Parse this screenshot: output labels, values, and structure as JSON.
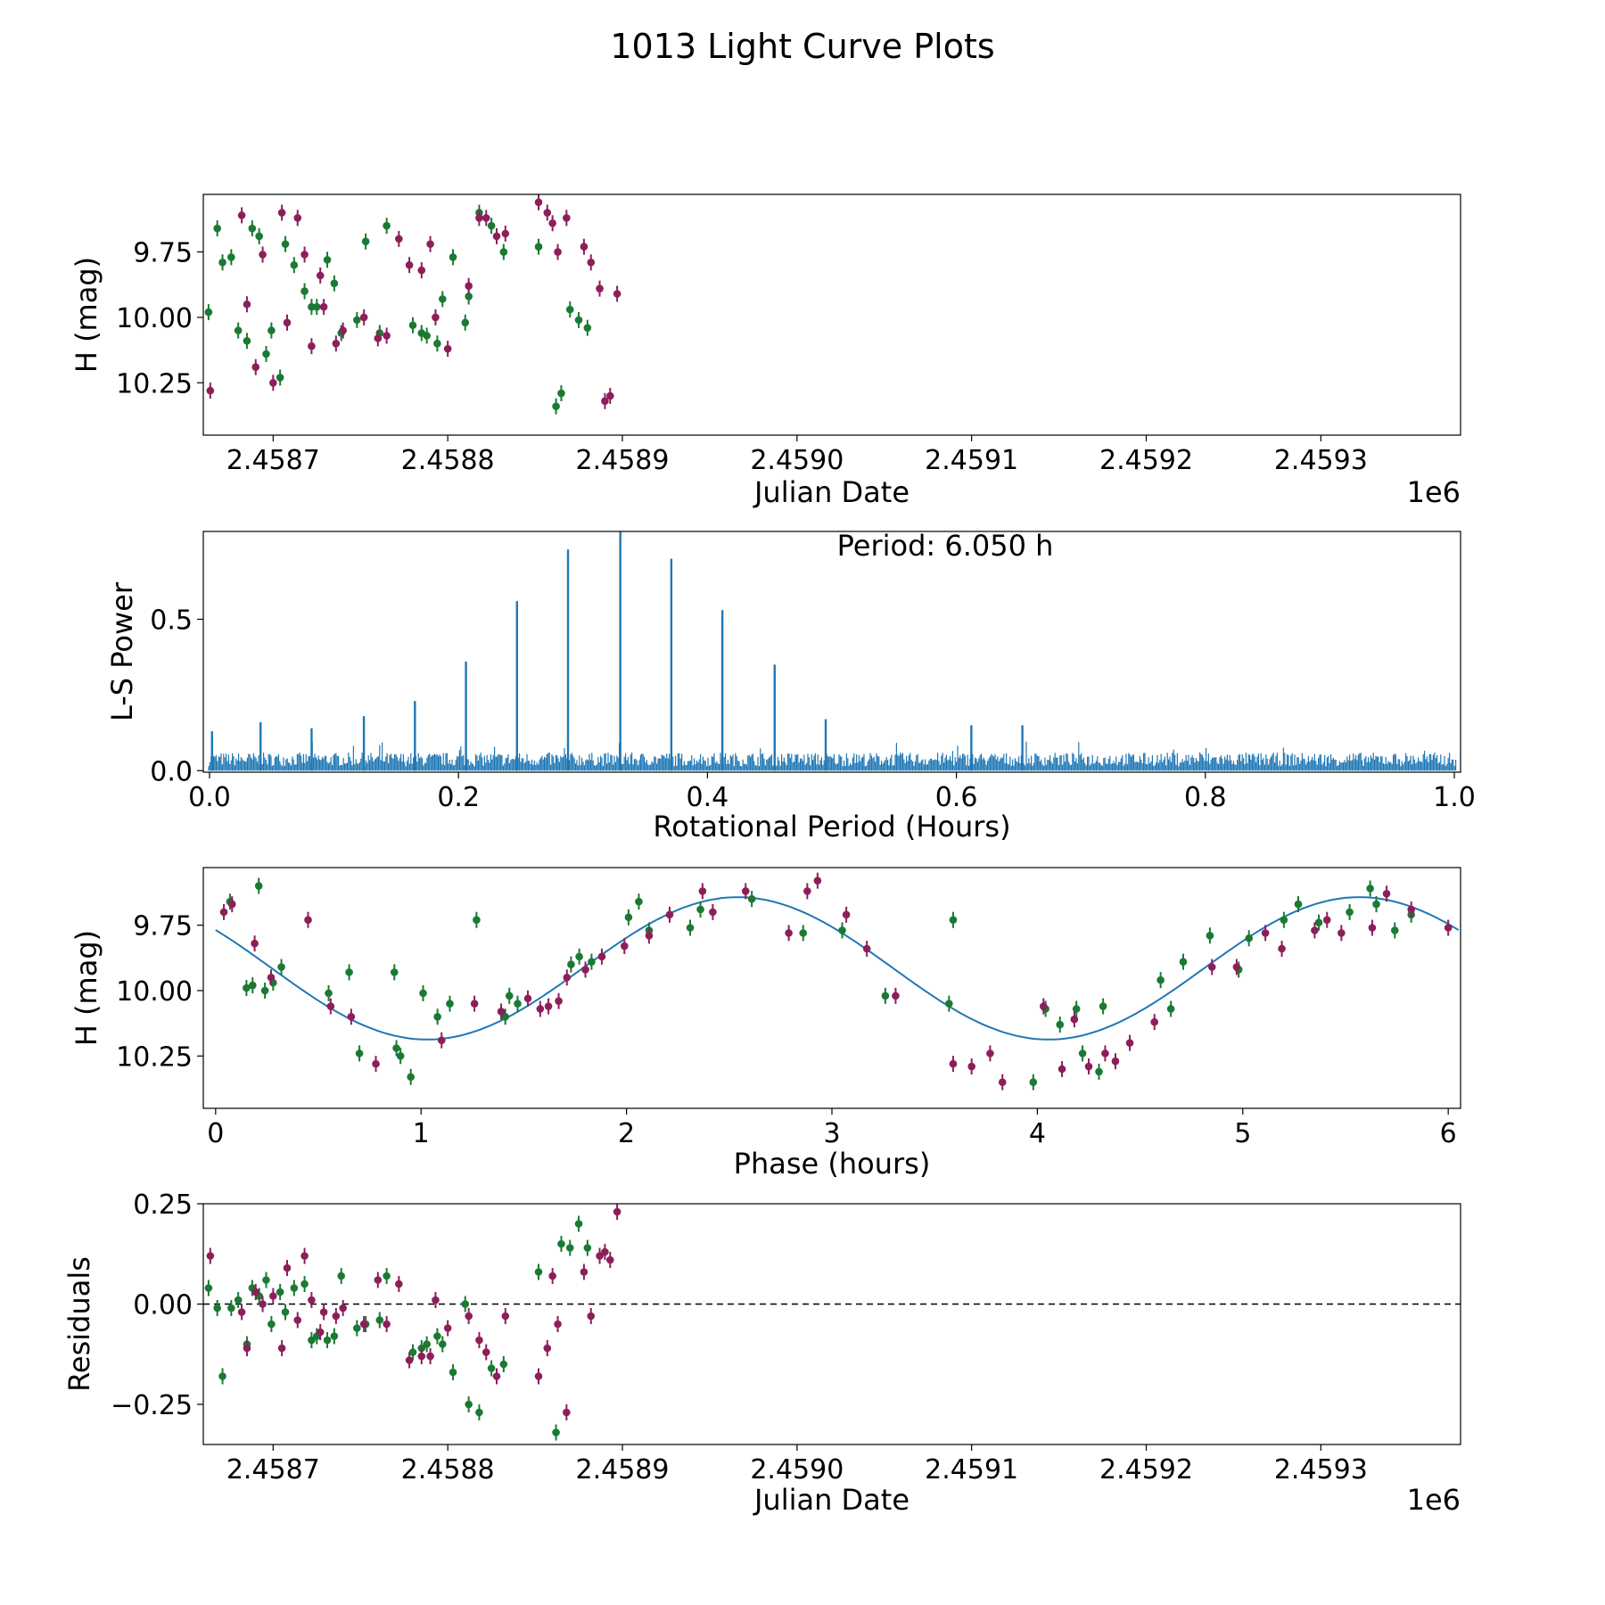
{
  "figure": {
    "title": "1013 Light Curve Plots",
    "colors": {
      "filter_a": "#1a7a33",
      "filter_b": "#8c1f5a",
      "line": "#1f77b4",
      "axis": "#000000"
    }
  },
  "chart_data": [
    {
      "id": "lightcurve",
      "type": "scatter",
      "title": "",
      "xlabel": "Julian Date",
      "ylabel": "H (mag)",
      "x_offset_label": "1e6",
      "xlim": [
        2.45866,
        2.45938
      ],
      "ylim": [
        10.45,
        9.53
      ],
      "ylim_note": "magnitude axis inverted (bright at bottom)",
      "xticks": [
        2.4587,
        2.4588,
        2.4589,
        2.459,
        2.4591,
        2.4592,
        2.4593
      ],
      "xtick_labels": [
        "2.4587",
        "2.4588",
        "2.4589",
        "2.4590",
        "2.4591",
        "2.4592",
        "2.4593"
      ],
      "yticks": [
        10.25,
        10.0,
        9.75
      ],
      "ytick_labels": [
        "10.25",
        "10.00",
        "9.75"
      ],
      "series": [
        {
          "name": "green filter",
          "color": "#1a7a33",
          "x": [
            2.458663,
            2.458668,
            2.458671,
            2.458676,
            2.45868,
            2.458685,
            2.458688,
            2.458692,
            2.458696,
            2.458699,
            2.458704,
            2.458707,
            2.458712,
            2.458718,
            2.458722,
            2.458725,
            2.458731,
            2.458735,
            2.458739,
            2.458748,
            2.458753,
            2.458761,
            2.458765,
            2.45878,
            2.458785,
            2.458788,
            2.458794,
            2.458797,
            2.458803,
            2.45881,
            2.458812,
            2.458818,
            2.458825,
            2.458832,
            2.458852,
            2.458862,
            2.458865,
            2.45887,
            2.458875,
            2.45888
          ],
          "y": [
            9.98,
            9.66,
            9.79,
            9.77,
            10.05,
            10.09,
            9.66,
            9.69,
            10.14,
            10.05,
            10.23,
            9.72,
            9.8,
            9.9,
            9.96,
            9.96,
            9.78,
            9.87,
            10.06,
            10.01,
            9.71,
            10.06,
            9.65,
            10.03,
            10.06,
            10.07,
            10.1,
            9.93,
            9.77,
            10.02,
            9.92,
            9.6,
            9.65,
            9.75,
            9.73,
            10.34,
            10.29,
            9.97,
            10.01,
            10.04
          ]
        },
        {
          "name": "magenta filter",
          "color": "#8c1f5a",
          "x": [
            2.458664,
            2.458682,
            2.458685,
            2.45869,
            2.458694,
            2.4587,
            2.458705,
            2.458708,
            2.458714,
            2.458718,
            2.458722,
            2.458727,
            2.458729,
            2.458736,
            2.45874,
            2.458752,
            2.45876,
            2.458765,
            2.458772,
            2.458778,
            2.458785,
            2.45879,
            2.458793,
            2.4588,
            2.458812,
            2.458818,
            2.458822,
            2.458828,
            2.458833,
            2.458852,
            2.458857,
            2.45886,
            2.458863,
            2.458868,
            2.458878,
            2.458882,
            2.458887,
            2.45889,
            2.458893,
            2.458897
          ],
          "y": [
            10.28,
            9.61,
            9.95,
            10.19,
            9.76,
            10.25,
            9.6,
            10.02,
            9.62,
            9.76,
            10.11,
            9.84,
            9.96,
            10.1,
            10.05,
            10.0,
            10.08,
            10.07,
            9.7,
            9.8,
            9.82,
            9.72,
            10.0,
            10.12,
            9.88,
            9.62,
            9.62,
            9.69,
            9.68,
            9.56,
            9.6,
            9.64,
            9.75,
            9.62,
            9.73,
            9.79,
            9.89,
            10.32,
            10.3,
            9.91
          ]
        }
      ]
    },
    {
      "id": "periodogram",
      "type": "line",
      "title": "",
      "xlabel": "Rotational Period (Hours)",
      "ylabel": "L-S Power",
      "annotation": "Period: 6.050 h",
      "xlim": [
        -0.005,
        1.005
      ],
      "ylim": [
        -0.005,
        0.79
      ],
      "xticks": [
        0.0,
        0.2,
        0.4,
        0.6,
        0.8,
        1.0
      ],
      "xtick_labels": [
        "0.0",
        "0.2",
        "0.4",
        "0.6",
        "0.8",
        "1.0"
      ],
      "yticks": [
        0.0,
        0.5
      ],
      "ytick_labels": [
        "0.0",
        "0.5"
      ],
      "peaks": {
        "x": [
          0.002,
          0.041,
          0.082,
          0.124,
          0.165,
          0.206,
          0.247,
          0.288,
          0.33,
          0.371,
          0.412,
          0.454,
          0.495,
          0.612,
          0.653
        ],
        "y": [
          0.13,
          0.16,
          0.14,
          0.18,
          0.23,
          0.36,
          0.56,
          0.73,
          0.79,
          0.7,
          0.53,
          0.35,
          0.17,
          0.15,
          0.15
        ]
      },
      "noise_level": 0.06,
      "series_color": "#1f77b4"
    },
    {
      "id": "phased",
      "type": "scatter",
      "title": "",
      "xlabel": "Phase (hours)",
      "ylabel": "H (mag)",
      "xlim": [
        -0.06,
        6.06
      ],
      "ylim": [
        10.45,
        9.53
      ],
      "xticks": [
        0,
        1,
        2,
        3,
        4,
        5,
        6
      ],
      "xtick_labels": [
        "0",
        "1",
        "2",
        "3",
        "4",
        "5",
        "6"
      ],
      "yticks": [
        10.25,
        10.0,
        9.75
      ],
      "ytick_labels": [
        "10.25",
        "10.00",
        "9.75"
      ],
      "model": {
        "name": "sinusoid fit",
        "mean": 9.915,
        "amplitude": 0.272,
        "period_hours": 3.025,
        "peak_phase_hours": 1.03,
        "color": "#1f77b4"
      },
      "series": [
        {
          "name": "green filter",
          "color": "#1a7a33",
          "x": [
            0.07,
            0.15,
            0.18,
            0.21,
            0.24,
            0.28,
            0.32,
            0.55,
            0.65,
            0.7,
            0.87,
            0.88,
            0.9,
            0.95,
            1.01,
            1.08,
            1.14,
            1.27,
            1.41,
            1.43,
            1.47,
            1.73,
            1.77,
            1.83,
            2.01,
            2.06,
            2.11,
            2.31,
            2.36,
            2.61,
            2.86,
            3.05,
            3.26,
            3.57,
            3.59,
            3.98,
            4.04,
            4.11,
            4.19,
            4.22,
            4.3,
            4.32,
            4.6,
            4.65,
            4.71,
            4.84,
            4.98,
            5.03,
            5.2,
            5.27,
            5.37,
            5.52,
            5.62,
            5.65,
            5.74,
            5.82
          ],
          "y": [
            9.66,
            9.99,
            9.98,
            9.6,
            10.0,
            9.97,
            9.91,
            10.01,
            9.93,
            10.24,
            9.93,
            10.22,
            10.25,
            10.33,
            10.01,
            10.1,
            10.05,
            9.73,
            10.1,
            10.02,
            10.05,
            9.9,
            9.87,
            9.89,
            9.72,
            9.66,
            9.77,
            9.76,
            9.69,
            9.65,
            9.78,
            9.77,
            10.02,
            10.05,
            9.73,
            10.35,
            10.07,
            10.13,
            10.07,
            10.24,
            10.31,
            10.06,
            9.96,
            10.07,
            9.89,
            9.79,
            9.92,
            9.8,
            9.73,
            9.67,
            9.74,
            9.7,
            9.61,
            9.67,
            9.77,
            9.71
          ]
        },
        {
          "name": "magenta filter",
          "color": "#8c1f5a",
          "x": [
            0.04,
            0.08,
            0.19,
            0.27,
            0.45,
            0.56,
            0.66,
            0.78,
            1.1,
            1.26,
            1.39,
            1.52,
            1.58,
            1.62,
            1.67,
            1.71,
            1.8,
            1.88,
            1.99,
            2.11,
            2.21,
            2.37,
            2.42,
            2.58,
            2.79,
            2.88,
            2.93,
            3.07,
            3.17,
            3.31,
            3.59,
            3.68,
            3.77,
            3.83,
            4.03,
            4.12,
            4.18,
            4.25,
            4.33,
            4.38,
            4.45,
            4.57,
            4.85,
            4.97,
            5.11,
            5.19,
            5.35,
            5.41,
            5.48,
            5.63,
            5.7,
            5.82,
            6.0
          ],
          "y": [
            9.7,
            9.67,
            9.82,
            9.95,
            9.73,
            10.06,
            10.1,
            10.28,
            10.19,
            10.05,
            10.08,
            10.03,
            10.07,
            10.06,
            10.04,
            9.95,
            9.92,
            9.87,
            9.83,
            9.79,
            9.71,
            9.62,
            9.7,
            9.62,
            9.78,
            9.62,
            9.58,
            9.71,
            9.84,
            10.02,
            10.28,
            10.29,
            10.24,
            10.35,
            10.06,
            10.3,
            10.11,
            10.29,
            10.24,
            10.27,
            10.2,
            10.12,
            9.91,
            9.91,
            9.78,
            9.84,
            9.77,
            9.73,
            9.78,
            9.76,
            9.63,
            9.69,
            9.76
          ]
        }
      ]
    },
    {
      "id": "residuals",
      "type": "scatter",
      "title": "",
      "xlabel": "Julian Date",
      "ylabel": "Residuals",
      "x_offset_label": "1e6",
      "xlim": [
        2.45866,
        2.45938
      ],
      "ylim": [
        -0.35,
        0.25
      ],
      "reference_line": 0.0,
      "xticks": [
        2.4587,
        2.4588,
        2.4589,
        2.459,
        2.4591,
        2.4592,
        2.4593
      ],
      "xtick_labels": [
        "2.4587",
        "2.4588",
        "2.4589",
        "2.4590",
        "2.4591",
        "2.4592",
        "2.4593"
      ],
      "yticks": [
        0.25,
        0.0,
        -0.25
      ],
      "ytick_labels": [
        "0.25",
        "0.00",
        "−0.25"
      ],
      "series": [
        {
          "name": "green filter",
          "color": "#1a7a33",
          "x": [
            2.458663,
            2.458668,
            2.458671,
            2.458676,
            2.45868,
            2.458685,
            2.458688,
            2.458692,
            2.458696,
            2.458699,
            2.458704,
            2.458707,
            2.458712,
            2.458718,
            2.458722,
            2.458725,
            2.458731,
            2.458735,
            2.458739,
            2.458748,
            2.458753,
            2.458761,
            2.458765,
            2.45878,
            2.458785,
            2.458788,
            2.458794,
            2.458797,
            2.458803,
            2.45881,
            2.458812,
            2.458818,
            2.458825,
            2.458832,
            2.458852,
            2.458862,
            2.458865,
            2.45887,
            2.458875,
            2.45888
          ],
          "y": [
            0.04,
            -0.01,
            -0.18,
            -0.01,
            0.01,
            -0.1,
            0.04,
            0.02,
            0.06,
            -0.05,
            0.03,
            -0.02,
            0.04,
            0.05,
            -0.09,
            -0.08,
            -0.09,
            -0.08,
            0.07,
            -0.06,
            -0.05,
            -0.04,
            0.07,
            -0.12,
            -0.11,
            -0.1,
            -0.08,
            -0.1,
            -0.17,
            0.0,
            -0.25,
            -0.27,
            -0.16,
            -0.15,
            0.08,
            -0.32,
            0.15,
            0.14,
            0.2,
            0.14
          ]
        },
        {
          "name": "magenta filter",
          "color": "#8c1f5a",
          "x": [
            2.458664,
            2.458682,
            2.458685,
            2.45869,
            2.458694,
            2.4587,
            2.458705,
            2.458708,
            2.458714,
            2.458718,
            2.458722,
            2.458727,
            2.458729,
            2.458736,
            2.45874,
            2.458752,
            2.45876,
            2.458765,
            2.458772,
            2.458778,
            2.458785,
            2.45879,
            2.458793,
            2.4588,
            2.458812,
            2.458818,
            2.458822,
            2.458828,
            2.458833,
            2.458852,
            2.458857,
            2.45886,
            2.458863,
            2.458868,
            2.458878,
            2.458882,
            2.458887,
            2.45889,
            2.458893,
            2.458897
          ],
          "y": [
            0.12,
            -0.02,
            -0.11,
            0.03,
            0.0,
            0.02,
            -0.11,
            0.09,
            -0.04,
            0.12,
            0.01,
            -0.07,
            -0.02,
            -0.03,
            -0.01,
            -0.05,
            0.06,
            -0.05,
            0.05,
            -0.14,
            -0.13,
            -0.13,
            0.01,
            -0.06,
            -0.03,
            -0.09,
            -0.12,
            -0.18,
            -0.03,
            -0.18,
            -0.11,
            0.07,
            -0.05,
            -0.27,
            0.08,
            -0.03,
            0.12,
            0.13,
            0.11,
            0.23
          ]
        }
      ]
    }
  ]
}
